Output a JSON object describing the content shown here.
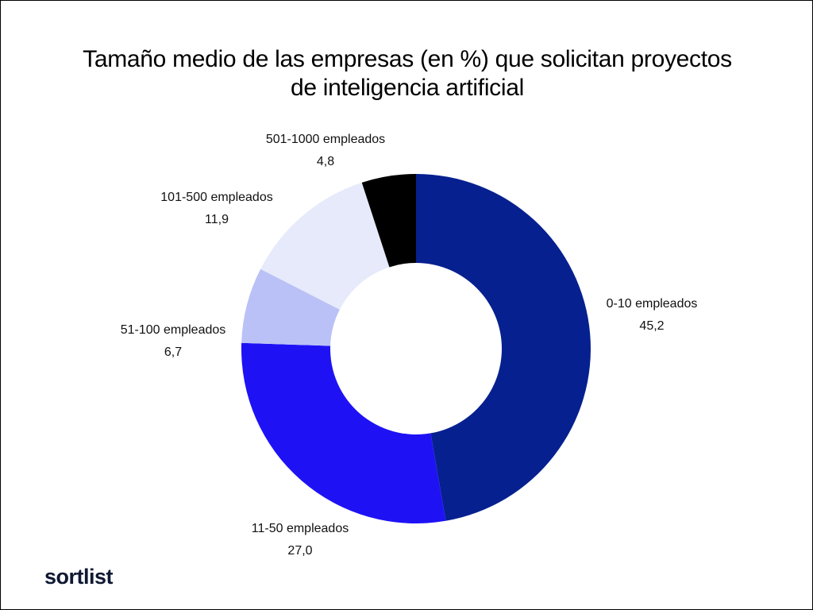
{
  "chart_data": {
    "type": "pie",
    "style": "donut",
    "title_lines": [
      "Tamaño medio de las empresas (en %) que solicitan proyectos",
      "de inteligencia artificial"
    ],
    "categories": [
      "0-10 empleados",
      "11-50 empleados",
      "51-100 empleados",
      "101-500 empleados",
      "501-1000 empleados"
    ],
    "values": [
      45.2,
      27.0,
      6.7,
      11.9,
      4.8
    ],
    "value_labels": [
      "45,2",
      "27,0",
      "6,7",
      "11,9",
      "4,8"
    ],
    "colors": [
      "#06208f",
      "#1e12f5",
      "#b9c1f6",
      "#e6eafa",
      "#f5f6fc"
    ],
    "extra_colors": {
      "501-1000 empleados_dark": "#000000"
    },
    "legend": "none",
    "start_angle": "12 o'clock, clockwise"
  },
  "brand": {
    "logo_text": "sortlist"
  }
}
